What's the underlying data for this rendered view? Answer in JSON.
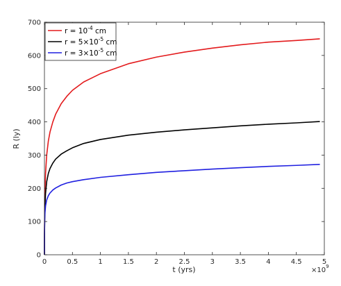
{
  "chart_data": {
    "type": "line",
    "xlabel": "t (yrs)",
    "ylabel": "R (ly)",
    "xlim": [
      0,
      5
    ],
    "ylim": [
      0,
      700
    ],
    "x_ticks": [
      "0",
      "0.5",
      "1",
      "1.5",
      "2",
      "2.5",
      "3",
      "3.5",
      "4",
      "4.5",
      "5"
    ],
    "y_ticks": [
      "0",
      "100",
      "200",
      "300",
      "400",
      "500",
      "600",
      "700"
    ],
    "x_multiplier": {
      "base": "×10",
      "exponent": "9"
    },
    "grid": false,
    "legend_position": "top-left",
    "series": [
      {
        "name": "r = 10",
        "name_exp": "-4",
        "name_unit": " cm",
        "color": "#e31a1c",
        "x": [
          0.0,
          0.001,
          0.005,
          0.01,
          0.02,
          0.04,
          0.07,
          0.1,
          0.15,
          0.2,
          0.3,
          0.4,
          0.5,
          0.7,
          1.0,
          1.5,
          2.0,
          2.5,
          3.0,
          3.5,
          4.0,
          4.5,
          4.92
        ],
        "y": [
          0,
          60,
          146,
          195,
          245,
          300,
          343,
          370,
          400,
          423,
          455,
          477,
          495,
          520,
          545,
          575,
          595,
          610,
          622,
          632,
          640,
          645,
          650
        ]
      },
      {
        "name": "r = 5",
        "name_mid": "×10",
        "name_exp": "-5",
        "name_unit": " cm",
        "color": "#000000",
        "x": [
          0.0,
          0.001,
          0.005,
          0.01,
          0.02,
          0.04,
          0.07,
          0.1,
          0.15,
          0.2,
          0.3,
          0.4,
          0.5,
          0.7,
          1.0,
          1.5,
          2.0,
          2.5,
          3.0,
          3.5,
          4.0,
          4.5,
          4.92
        ],
        "y": [
          0,
          58,
          114,
          150,
          185,
          220,
          245,
          260,
          276,
          288,
          303,
          313,
          322,
          335,
          347,
          360,
          369,
          376,
          382,
          388,
          393,
          397,
          401
        ]
      },
      {
        "name": "r = 3",
        "name_mid": "×10",
        "name_exp": "-5",
        "name_unit": " cm",
        "color": "#1f1fe0",
        "x": [
          0.0,
          0.001,
          0.005,
          0.01,
          0.02,
          0.04,
          0.07,
          0.1,
          0.15,
          0.2,
          0.3,
          0.4,
          0.5,
          0.7,
          1.0,
          1.5,
          2.0,
          2.5,
          3.0,
          3.5,
          4.0,
          4.5,
          4.92
        ],
        "y": [
          0,
          65,
          107,
          127,
          147,
          165,
          178,
          186,
          195,
          201,
          210,
          216,
          220,
          226,
          233,
          241,
          248,
          253,
          258,
          262,
          266,
          269,
          272
        ]
      }
    ]
  }
}
